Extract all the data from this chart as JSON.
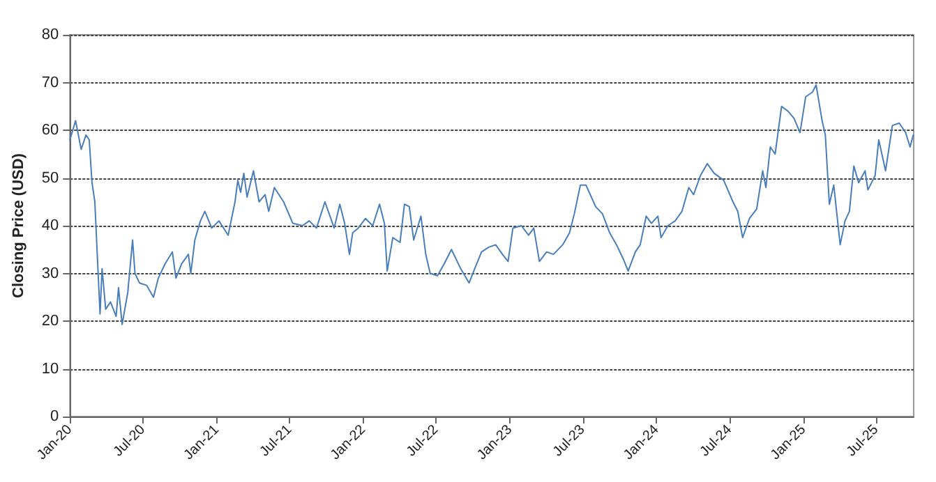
{
  "chart_data": {
    "type": "line",
    "ylabel": "Closing Price (USD)",
    "x": [
      "2020-01-01",
      "2020-01-15",
      "2020-01-29",
      "2020-02-10",
      "2020-02-18",
      "2020-02-25",
      "2020-03-03",
      "2020-03-09",
      "2020-03-16",
      "2020-03-21",
      "2020-03-30",
      "2020-04-11",
      "2020-04-25",
      "2020-05-01",
      "2020-05-10",
      "2020-05-24",
      "2020-06-05",
      "2020-06-11",
      "2020-06-22",
      "2020-07-10",
      "2020-07-27",
      "2020-08-08",
      "2020-08-25",
      "2020-09-12",
      "2020-09-21",
      "2020-10-05",
      "2020-10-22",
      "2020-10-28",
      "2020-11-07",
      "2020-11-21",
      "2020-12-02",
      "2020-12-19",
      "2021-01-06",
      "2021-01-29",
      "2021-02-15",
      "2021-02-22",
      "2021-03-01",
      "2021-03-09",
      "2021-03-17",
      "2021-04-02",
      "2021-04-16",
      "2021-05-01",
      "2021-05-10",
      "2021-05-24",
      "2021-06-16",
      "2021-07-09",
      "2021-08-02",
      "2021-08-19",
      "2021-09-06",
      "2021-09-27",
      "2021-10-20",
      "2021-11-03",
      "2021-11-15",
      "2021-11-27",
      "2021-12-05",
      "2021-12-19",
      "2022-01-06",
      "2022-01-24",
      "2022-02-10",
      "2022-02-22",
      "2022-03-01",
      "2022-03-15",
      "2022-04-02",
      "2022-04-13",
      "2022-04-25",
      "2022-05-06",
      "2022-05-24",
      "2022-06-05",
      "2022-06-16",
      "2022-07-04",
      "2022-07-21",
      "2022-08-08",
      "2022-08-31",
      "2022-09-21",
      "2022-10-05",
      "2022-10-22",
      "2022-11-09",
      "2022-11-26",
      "2022-12-13",
      "2022-12-27",
      "2023-01-08",
      "2023-01-29",
      "2023-02-16",
      "2023-03-01",
      "2023-03-15",
      "2023-04-02",
      "2023-04-19",
      "2023-05-12",
      "2023-05-29",
      "2023-06-10",
      "2023-06-25",
      "2023-07-09",
      "2023-08-02",
      "2023-08-19",
      "2023-09-06",
      "2023-09-23",
      "2023-10-10",
      "2023-10-22",
      "2023-11-09",
      "2023-11-21",
      "2023-12-06",
      "2023-12-19",
      "2024-01-04",
      "2024-01-12",
      "2024-01-29",
      "2024-02-16",
      "2024-03-04",
      "2024-03-21",
      "2024-04-02",
      "2024-04-19",
      "2024-05-06",
      "2024-05-23",
      "2024-06-16",
      "2024-07-09",
      "2024-07-21",
      "2024-08-02",
      "2024-08-19",
      "2024-09-06",
      "2024-09-21",
      "2024-09-29",
      "2024-10-10",
      "2024-10-22",
      "2024-11-07",
      "2024-11-23",
      "2024-12-08",
      "2024-12-23",
      "2025-01-06",
      "2025-01-23",
      "2025-02-01",
      "2025-02-16",
      "2025-02-24",
      "2025-03-06",
      "2025-03-17",
      "2025-04-02",
      "2025-04-14",
      "2025-04-25",
      "2025-05-06",
      "2025-05-18",
      "2025-06-03",
      "2025-06-10",
      "2025-06-28",
      "2025-07-07",
      "2025-07-24",
      "2025-08-10",
      "2025-08-27",
      "2025-09-12",
      "2025-09-23",
      "2025-10-01"
    ],
    "series": [
      {
        "color": "#4a7ebb",
        "values": [
          58,
          62,
          56,
          59,
          58,
          49,
          45,
          34,
          21.5,
          31,
          22.5,
          24,
          21,
          27,
          19.3,
          26,
          37,
          30,
          28,
          27.5,
          25,
          29,
          32,
          34.5,
          29,
          32,
          34,
          30,
          37,
          41,
          43,
          39.5,
          41,
          38,
          45,
          49.5,
          47,
          51,
          46,
          51.5,
          45,
          46.5,
          43,
          48,
          45,
          40.5,
          40,
          41,
          39.5,
          45,
          39.5,
          44.5,
          40.5,
          34,
          38.5,
          39.5,
          41.5,
          40,
          44.5,
          40.5,
          30.5,
          37.5,
          36.5,
          44.5,
          44,
          37,
          42,
          34,
          30,
          29.5,
          32,
          35,
          31,
          28,
          31,
          34.5,
          35.5,
          36,
          34,
          32.5,
          39.5,
          40,
          38,
          39.5,
          32.5,
          34.5,
          34,
          36,
          38.5,
          42.5,
          48.5,
          48.5,
          44,
          42.5,
          38.5,
          36,
          33,
          30.5,
          34.5,
          36,
          42,
          40.5,
          42,
          37.5,
          40,
          41,
          43,
          48,
          46.5,
          50.5,
          53,
          51,
          49.5,
          45,
          43,
          37.5,
          41.5,
          43.5,
          51.5,
          48,
          56.5,
          55,
          65,
          64,
          62.5,
          59.5,
          67,
          68,
          69.5,
          62,
          59,
          44.5,
          48.5,
          36,
          41,
          43,
          52.5,
          49,
          51.5,
          47.5,
          50.5,
          58,
          51.5,
          61,
          61.5,
          59.5,
          56.5,
          59
        ]
      }
    ],
    "xlim": [
      "2020-01-01",
      "2025-10-02"
    ],
    "xticks": [
      {
        "value": "2020-01-01",
        "label": "Jan-20"
      },
      {
        "value": "2020-07-01",
        "label": "Jul-20"
      },
      {
        "value": "2021-01-01",
        "label": "Jan-21"
      },
      {
        "value": "2021-07-01",
        "label": "Jul-21"
      },
      {
        "value": "2022-01-01",
        "label": "Jan-22"
      },
      {
        "value": "2022-07-01",
        "label": "Jul-22"
      },
      {
        "value": "2023-01-01",
        "label": "Jan-23"
      },
      {
        "value": "2023-07-01",
        "label": "Jul-23"
      },
      {
        "value": "2024-01-01",
        "label": "Jan-24"
      },
      {
        "value": "2024-07-01",
        "label": "Jul-24"
      },
      {
        "value": "2025-01-01",
        "label": "Jan-25"
      },
      {
        "value": "2025-07-01",
        "label": "Jul-25"
      }
    ],
    "ylim": [
      0,
      80
    ],
    "yticks": [
      0,
      10,
      20,
      30,
      40,
      50,
      60,
      70,
      80
    ],
    "grid": "y",
    "marker": "none",
    "line_style": "solid"
  }
}
